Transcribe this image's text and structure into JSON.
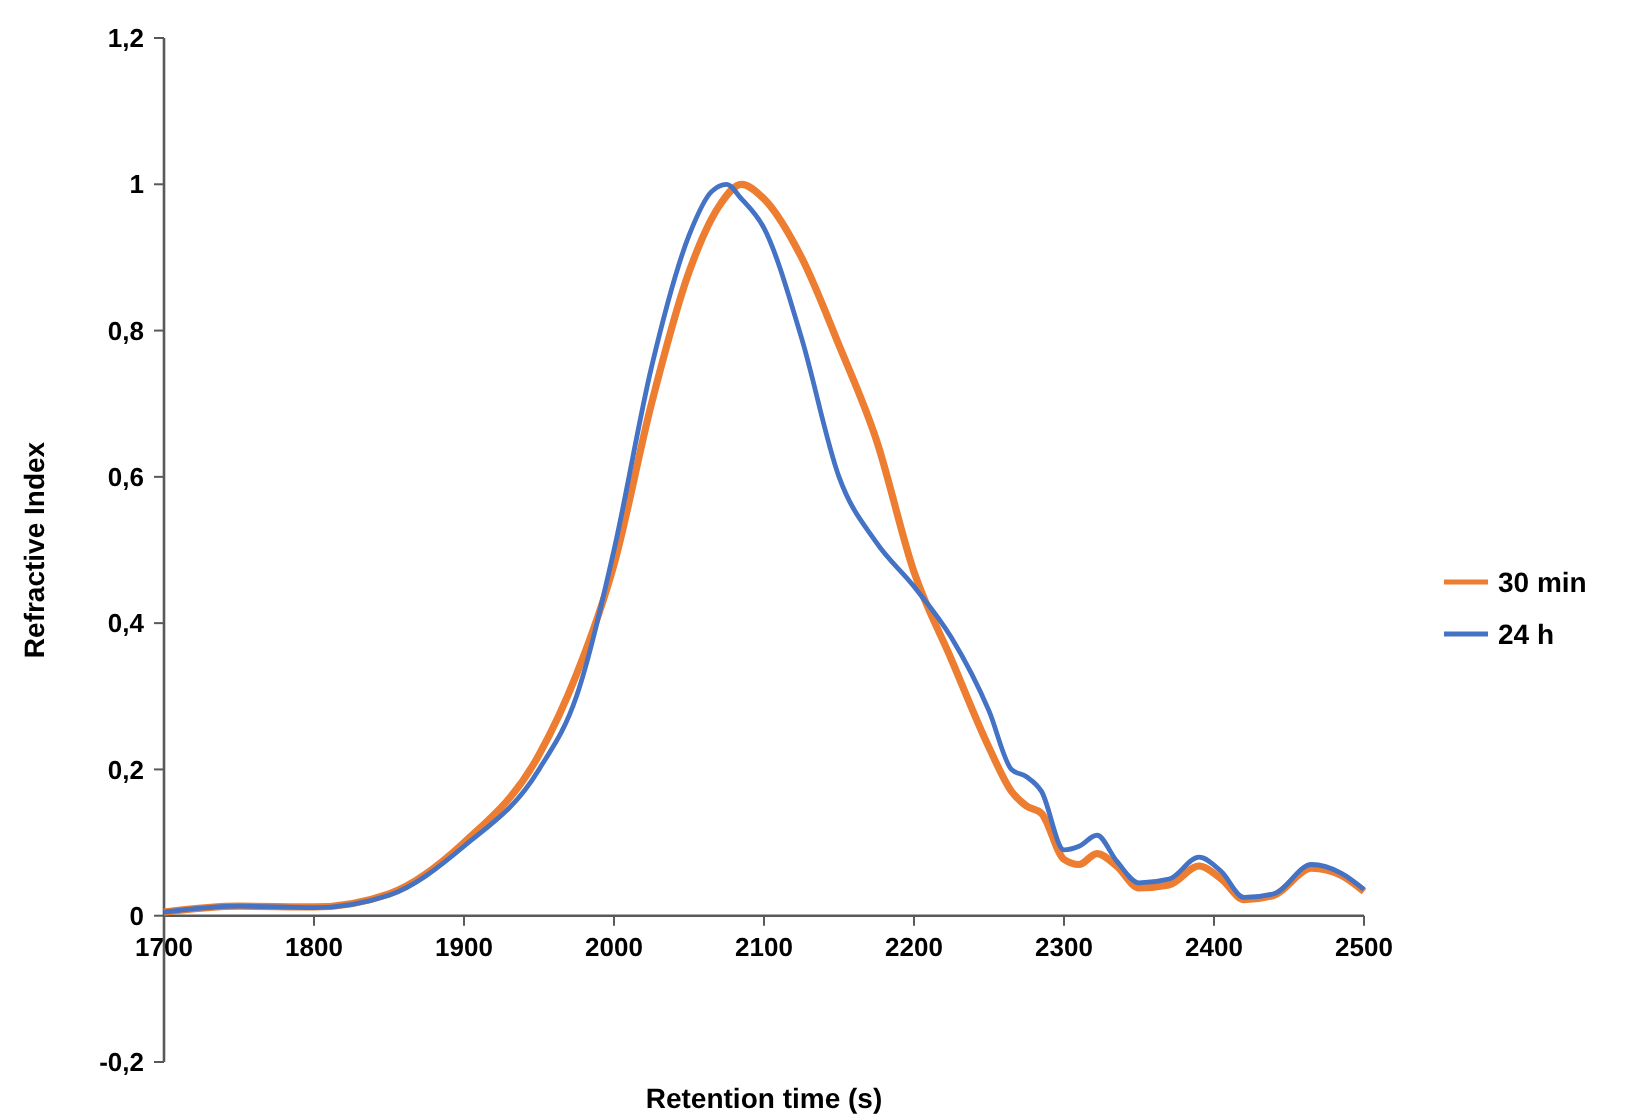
{
  "chart_data": {
    "type": "line",
    "xlabel": "Retention time (s)",
    "ylabel": "Refractive Index",
    "xlim": [
      1700,
      2500
    ],
    "ylim": [
      -0.2,
      1.2
    ],
    "xticks": [
      1700,
      1800,
      1900,
      2000,
      2100,
      2200,
      2300,
      2400,
      2500
    ],
    "yticks": [
      {
        "value": -0.2,
        "label": "-0,2"
      },
      0,
      {
        "value": 0.2,
        "label": "0,2"
      },
      {
        "value": 0.4,
        "label": "0,4"
      },
      {
        "value": 0.6,
        "label": "0,6"
      },
      {
        "value": 0.8,
        "label": "0,8"
      },
      1,
      {
        "value": 1.2,
        "label": "1,2"
      }
    ],
    "grid": false,
    "legend": "right",
    "marker": "none",
    "line_style": "solid",
    "series": [
      {
        "name": "30 min",
        "color": "#ed7d31",
        "x": [
          1700,
          1750,
          1800,
          1850,
          1900,
          1950,
          1975,
          2000,
          2025,
          2050,
          2070,
          2085,
          2100,
          2125,
          2150,
          2175,
          2200,
          2225,
          2250,
          2265,
          2275,
          2285,
          2300,
          2310,
          2322,
          2335,
          2350,
          2370,
          2390,
          2405,
          2420,
          2440,
          2465,
          2485,
          2500
        ],
        "values": [
          0.005,
          0.013,
          0.012,
          0.03,
          0.1,
          0.22,
          0.33,
          0.48,
          0.7,
          0.88,
          0.97,
          1.0,
          0.98,
          0.9,
          0.78,
          0.65,
          0.47,
          0.35,
          0.23,
          0.17,
          0.15,
          0.14,
          0.077,
          0.07,
          0.085,
          0.068,
          0.038,
          0.042,
          0.068,
          0.05,
          0.022,
          0.028,
          0.065,
          0.055,
          0.033
        ]
      },
      {
        "name": "24 h",
        "color": "#4472c4",
        "x": [
          1700,
          1750,
          1800,
          1850,
          1900,
          1950,
          1975,
          2000,
          2025,
          2050,
          2065,
          2075,
          2085,
          2100,
          2125,
          2150,
          2175,
          2200,
          2225,
          2250,
          2265,
          2275,
          2285,
          2300,
          2310,
          2322,
          2335,
          2350,
          2370,
          2390,
          2405,
          2420,
          2440,
          2465,
          2485,
          2500
        ],
        "values": [
          0.005,
          0.013,
          0.011,
          0.028,
          0.095,
          0.2,
          0.3,
          0.5,
          0.75,
          0.93,
          0.99,
          1.0,
          0.98,
          0.94,
          0.79,
          0.6,
          0.51,
          0.45,
          0.38,
          0.28,
          0.2,
          0.19,
          0.17,
          0.09,
          0.095,
          0.11,
          0.075,
          0.045,
          0.05,
          0.08,
          0.06,
          0.025,
          0.03,
          0.07,
          0.058,
          0.036
        ]
      }
    ]
  }
}
